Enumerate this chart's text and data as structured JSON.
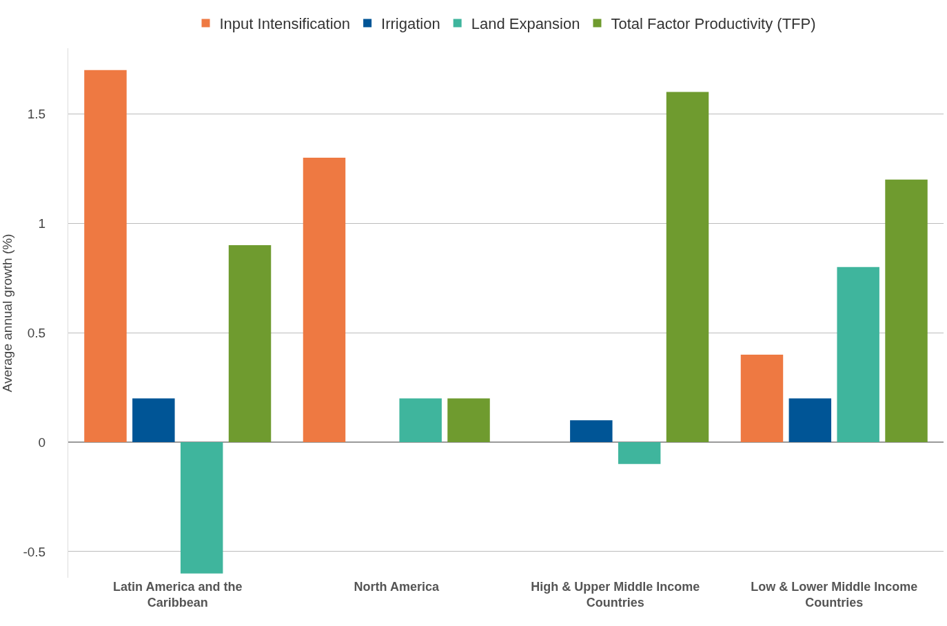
{
  "chart_data": {
    "type": "bar",
    "ylabel": "Average annual growth (%)",
    "categories": [
      "Latin America and the Caribbean",
      "North America",
      "High & Upper Middle Income Countries",
      "Low & Lower Middle Income Countries"
    ],
    "series": [
      {
        "name": "Input Intensification",
        "color": "#ee7942",
        "values": [
          1.7,
          1.3,
          0,
          0.4
        ]
      },
      {
        "name": "Irrigation",
        "color": "#005596",
        "values": [
          0.2,
          0,
          0.1,
          0.2
        ]
      },
      {
        "name": "Land Expansion",
        "color": "#3fb59d",
        "values": [
          -0.6,
          0.2,
          -0.1,
          0.8
        ]
      },
      {
        "name": "Total Factor Productivity (TFP)",
        "color": "#6f9b2f",
        "values": [
          0.9,
          0.2,
          1.6,
          1.2
        ]
      }
    ],
    "ylim": [
      -0.62,
      1.8
    ],
    "yticks": [
      -0.5,
      0,
      0.5,
      1,
      1.5
    ],
    "grid": "y",
    "legend": "top"
  }
}
